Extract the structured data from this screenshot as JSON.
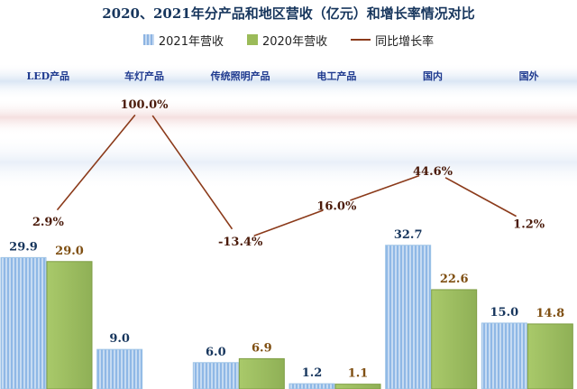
{
  "title": "2020、2021年分产品和地区营收（亿元）和增长率情况对比",
  "legend": {
    "s2021": "2021年营收",
    "s2020": "2020年营收",
    "growth": "同比增长率"
  },
  "colors": {
    "s2021": "#9dc3e6",
    "s2020": "#9bbb59",
    "growth": "#8b3a1a",
    "category_label": "#1f3a8f",
    "value_label": "#17365d",
    "value_label_2020": "#7f4f12",
    "growth_label": "#4a1a0a"
  },
  "chart_data": {
    "type": "bar",
    "title": "2020、2021年分产品和地区营收（亿元）和增长率情况对比",
    "categories": [
      "LED产品",
      "车灯产品",
      "传统照明产品",
      "电工产品",
      "国内",
      "国外"
    ],
    "series": [
      {
        "name": "2021年营收",
        "type": "bar",
        "values": [
          29.9,
          9.0,
          6.0,
          1.2,
          32.7,
          15.0
        ],
        "labels": [
          "29.9",
          "9.0",
          "6.0",
          "1.2",
          "32.7",
          "15.0"
        ]
      },
      {
        "name": "2020年营收",
        "type": "bar",
        "values": [
          29.0,
          null,
          6.9,
          1.1,
          22.6,
          14.8
        ],
        "labels": [
          "29.0",
          "",
          "6.9",
          "1.1",
          "22.6",
          "14.8"
        ]
      },
      {
        "name": "同比增长率",
        "type": "line",
        "values": [
          2.9,
          100.0,
          -13.4,
          16.0,
          44.6,
          1.2
        ],
        "labels": [
          "2.9%",
          "100.0%",
          "-13.4%",
          "16.0%",
          "44.6%",
          "1.2%"
        ]
      }
    ],
    "bar_ylim": [
      0,
      40
    ],
    "line_ylim": [
      -40,
      120
    ],
    "legend_position": "top",
    "grid": false
  }
}
